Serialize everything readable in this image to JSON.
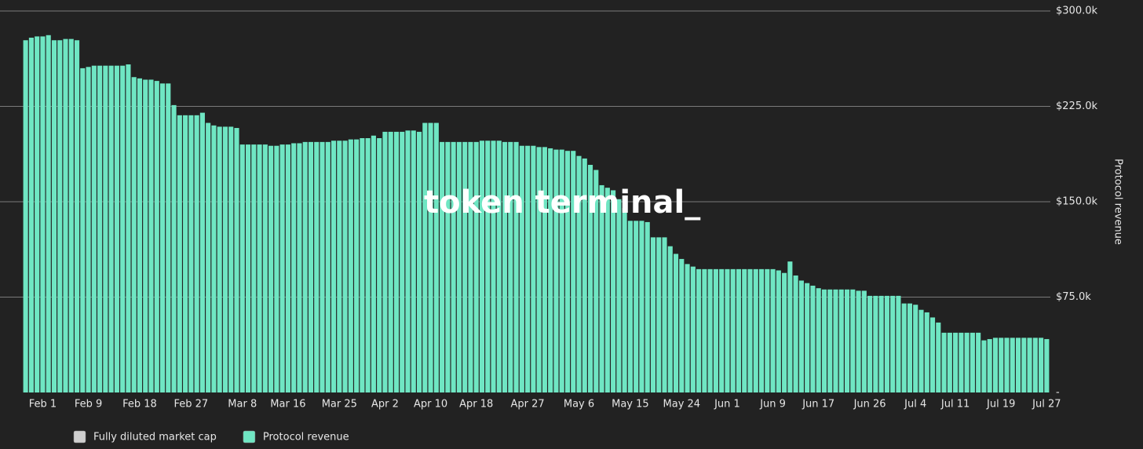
{
  "chart_data": {
    "type": "bar",
    "watermark": "token terminal_",
    "y_label": "Protocol revenue",
    "categories": [
      null,
      null,
      null,
      "Feb 1",
      null,
      null,
      null,
      null,
      null,
      null,
      null,
      "Feb 9",
      null,
      null,
      null,
      null,
      null,
      null,
      null,
      null,
      "Feb 18",
      null,
      null,
      null,
      null,
      null,
      null,
      null,
      null,
      "Feb 27",
      null,
      null,
      null,
      null,
      null,
      null,
      null,
      null,
      "Mar 8",
      null,
      null,
      null,
      null,
      null,
      null,
      null,
      "Mar 16",
      null,
      null,
      null,
      null,
      null,
      null,
      null,
      null,
      "Mar 25",
      null,
      null,
      null,
      null,
      null,
      null,
      null,
      "Apr 2",
      null,
      null,
      null,
      null,
      null,
      null,
      null,
      "Apr 10",
      null,
      null,
      null,
      null,
      null,
      null,
      null,
      "Apr 18",
      null,
      null,
      null,
      null,
      null,
      null,
      null,
      null,
      "Apr 27",
      null,
      null,
      null,
      null,
      null,
      null,
      null,
      null,
      "May 6",
      null,
      null,
      null,
      null,
      null,
      null,
      null,
      null,
      "May 15",
      null,
      null,
      null,
      null,
      null,
      null,
      null,
      null,
      "May 24",
      null,
      null,
      null,
      null,
      null,
      null,
      null,
      "Jun 1",
      null,
      null,
      null,
      null,
      null,
      null,
      null,
      "Jun 9",
      null,
      null,
      null,
      null,
      null,
      null,
      null,
      "Jun 17",
      null,
      null,
      null,
      null,
      null,
      null,
      null,
      null,
      "Jun 26",
      null,
      null,
      null,
      null,
      null,
      null,
      null,
      "Jul 4",
      null,
      null,
      null,
      null,
      null,
      null,
      "Jul 11",
      null,
      null,
      null,
      null,
      null,
      null,
      null,
      "Jul 19",
      null,
      null,
      null,
      null,
      null,
      null,
      null,
      "Jul 27"
    ],
    "series": [
      {
        "name": "Protocol revenue",
        "color": "#6fe6c3",
        "values": [
          277000,
          279000,
          280000,
          280000,
          281000,
          277000,
          277000,
          278000,
          278000,
          277000,
          255000,
          256000,
          257000,
          257000,
          257000,
          257000,
          257000,
          257000,
          258000,
          248000,
          247000,
          246000,
          246000,
          245000,
          243000,
          243000,
          226000,
          218000,
          218000,
          218000,
          218000,
          220000,
          212000,
          210000,
          209000,
          209000,
          209000,
          208000,
          195000,
          195000,
          195000,
          195000,
          195000,
          194000,
          194000,
          195000,
          195000,
          196000,
          196000,
          197000,
          197000,
          197000,
          197000,
          197000,
          198000,
          198000,
          198000,
          199000,
          199000,
          200000,
          200000,
          202000,
          200000,
          205000,
          205000,
          205000,
          205000,
          206000,
          206000,
          205000,
          212000,
          212000,
          212000,
          197000,
          197000,
          197000,
          197000,
          197000,
          197000,
          197000,
          198000,
          198000,
          198000,
          198000,
          197000,
          197000,
          197000,
          194000,
          194000,
          194000,
          193000,
          193000,
          192000,
          191000,
          191000,
          190000,
          190000,
          186000,
          184000,
          179000,
          175000,
          163000,
          161000,
          159000,
          152000,
          145000,
          135000,
          135000,
          135000,
          134000,
          122000,
          122000,
          122000,
          115000,
          109000,
          105000,
          101000,
          99000,
          97000,
          97000,
          97000,
          97000,
          97000,
          97000,
          97000,
          97000,
          97000,
          97000,
          97000,
          97000,
          97000,
          97000,
          96000,
          94000,
          103000,
          92000,
          88000,
          86000,
          84000,
          82000,
          81000,
          81000,
          81000,
          81000,
          81000,
          81000,
          80000,
          80000,
          76000,
          76000,
          76000,
          76000,
          76000,
          76000,
          70000,
          70000,
          69000,
          65000,
          63000,
          59000,
          55000,
          47000,
          47000,
          47000,
          47000,
          47000,
          47000,
          47000,
          41000,
          42000,
          43000,
          43000,
          43000,
          43000,
          43000,
          43000,
          43000,
          43000,
          43000,
          42000
        ]
      }
    ],
    "legend_extra": [
      {
        "name": "Fully diluted market cap",
        "color": "#cfcfcf"
      }
    ],
    "ylim": [
      0,
      300000
    ],
    "yticks": [
      {
        "value": 0,
        "label": "-"
      },
      {
        "value": 75000,
        "label": "$75.0k"
      },
      {
        "value": 150000,
        "label": "$150.0k"
      },
      {
        "value": 225000,
        "label": "$225.0k"
      },
      {
        "value": 300000,
        "label": "$300.0k"
      }
    ],
    "grid": true
  }
}
